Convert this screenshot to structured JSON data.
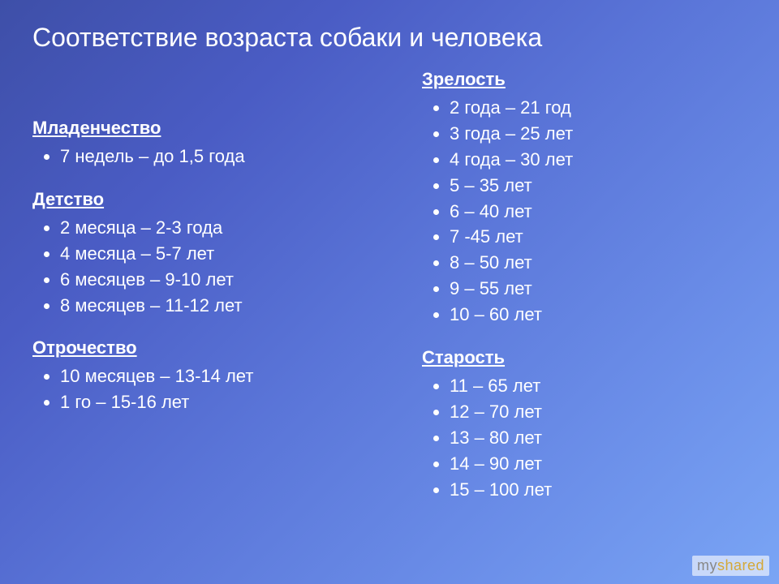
{
  "title": "Соответствие возраста собаки и человека",
  "columns": {
    "left": [
      {
        "heading": "Младенчество",
        "items": [
          "7 недель – до 1,5 года"
        ]
      },
      {
        "heading": "Детство",
        "items": [
          "2 месяца – 2-3 года",
          "4 месяца – 5-7 лет",
          "6 месяцев – 9-10 лет",
          "8 месяцев – 11-12 лет"
        ]
      },
      {
        "heading": "Отрочество",
        "items": [
          "10 месяцев – 13-14 лет",
          "1 го – 15-16 лет"
        ]
      }
    ],
    "right": [
      {
        "heading": "Зрелость",
        "items": [
          "2 года – 21 год",
          "3 года – 25 лет",
          "4 года – 30 лет",
          "5 – 35 лет",
          "6 – 40 лет",
          "7 -45 лет",
          "8 – 50 лет",
          "9 – 55 лет",
          "10  – 60 лет"
        ]
      },
      {
        "heading": "Старость",
        "items": [
          "11 – 65 лет",
          "12 – 70 лет",
          "13 – 80 лет",
          "14 – 90 лет",
          "15 – 100 лет"
        ]
      }
    ]
  },
  "watermark": {
    "my": "my",
    "shared": "shared"
  },
  "style": {
    "gradient": [
      "#3e4fa8",
      "#4a5cc4",
      "#5a75d8",
      "#6a8de8",
      "#7aa5f5"
    ],
    "text_color": "#ffffff",
    "title_fontsize": 32,
    "heading_fontsize": 22,
    "item_fontsize": 22
  }
}
